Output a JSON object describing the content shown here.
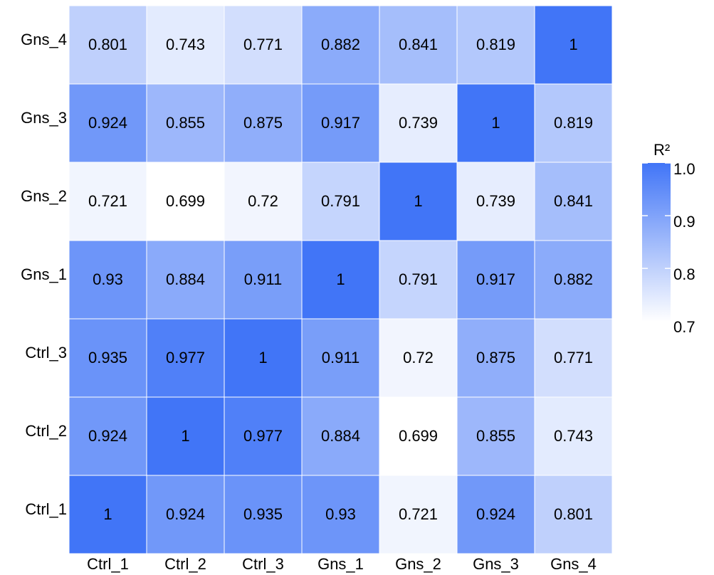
{
  "chart_data": {
    "type": "heatmap",
    "x_categories": [
      "Ctrl_1",
      "Ctrl_2",
      "Ctrl_3",
      "Gns_1",
      "Gns_2",
      "Gns_3",
      "Gns_4"
    ],
    "y_categories": [
      "Ctrl_1",
      "Ctrl_2",
      "Ctrl_3",
      "Gns_1",
      "Gns_2",
      "Gns_3",
      "Gns_4"
    ],
    "values": [
      [
        1,
        0.924,
        0.935,
        0.93,
        0.721,
        0.924,
        0.801
      ],
      [
        0.924,
        1,
        0.977,
        0.884,
        0.699,
        0.855,
        0.743
      ],
      [
        0.935,
        0.977,
        1,
        0.911,
        0.72,
        0.875,
        0.771
      ],
      [
        0.93,
        0.884,
        0.911,
        1,
        0.791,
        0.917,
        0.882
      ],
      [
        0.721,
        0.699,
        0.72,
        0.791,
        1,
        0.739,
        0.841
      ],
      [
        0.924,
        0.855,
        0.875,
        0.917,
        0.739,
        1,
        0.819
      ],
      [
        0.801,
        0.743,
        0.771,
        0.882,
        0.841,
        0.819,
        1
      ]
    ],
    "colorbar_title": "R²",
    "zlim": [
      0.699,
      1
    ],
    "zticks": [
      {
        "value": 1,
        "label": "1.0"
      },
      0.9,
      0.8,
      0.7
    ],
    "colors": [
      "#ffffff",
      "#4175f7"
    ]
  }
}
